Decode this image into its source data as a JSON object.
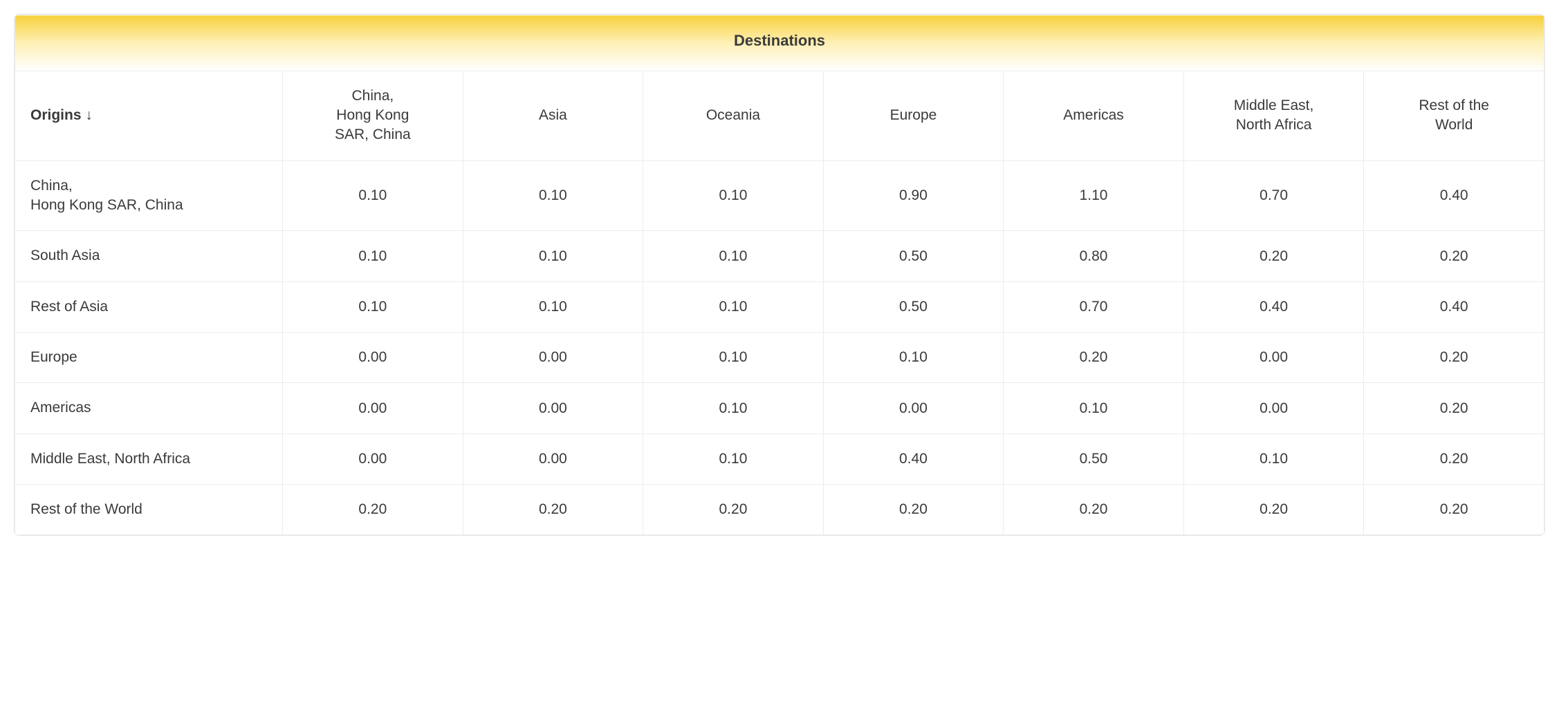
{
  "table": {
    "type": "table",
    "header_title": "Destinations",
    "origins_label": "Origins ↓",
    "columns": [
      "China,\nHong Kong\nSAR, China",
      "Asia",
      "Oceania",
      "Europe",
      "Americas",
      "Middle East,\nNorth Africa",
      "Rest of the\nWorld"
    ],
    "rows": [
      {
        "label": "China,\nHong Kong SAR, China",
        "values": [
          "0.10",
          "0.10",
          "0.10",
          "0.90",
          "1.10",
          "0.70",
          "0.40"
        ]
      },
      {
        "label": "South Asia",
        "values": [
          "0.10",
          "0.10",
          "0.10",
          "0.50",
          "0.80",
          "0.20",
          "0.20"
        ]
      },
      {
        "label": "Rest of Asia",
        "values": [
          "0.10",
          "0.10",
          "0.10",
          "0.50",
          "0.70",
          "0.40",
          "0.40"
        ]
      },
      {
        "label": "Europe",
        "values": [
          "0.00",
          "0.00",
          "0.10",
          "0.10",
          "0.20",
          "0.00",
          "0.20"
        ]
      },
      {
        "label": "Americas",
        "values": [
          "0.00",
          "0.00",
          "0.10",
          "0.00",
          "0.10",
          "0.00",
          "0.20"
        ]
      },
      {
        "label": "Middle East, North Africa",
        "values": [
          "0.00",
          "0.00",
          "0.10",
          "0.40",
          "0.50",
          "0.10",
          "0.20"
        ]
      },
      {
        "label": "Rest of the World",
        "values": [
          "0.20",
          "0.20",
          "0.20",
          "0.20",
          "0.20",
          "0.20",
          "0.20"
        ]
      }
    ],
    "style": {
      "header_gradient_top": "#f7d13b",
      "header_gradient_mid": "#fef0b6",
      "header_gradient_bottom": "#ffffff",
      "border_color": "#ececec",
      "outer_border_color": "#e6e6e6",
      "text_color": "#3a3a3a",
      "header_fontsize": 22,
      "cell_fontsize": 21,
      "border_radius": 8,
      "origin_col_width_pct": 17.5,
      "dest_col_width_pct": 11.78
    }
  }
}
